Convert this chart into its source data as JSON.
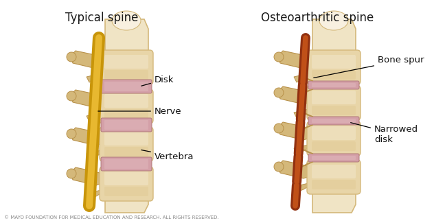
{
  "title_left": "Typical spine",
  "title_right": "Osteoarthritic spine",
  "bg_color": "#ffffff",
  "copyright": "© MAYO FOUNDATION FOR MEDICAL EDUCATION AND RESEARCH. ALL RIGHTS RESERVED.",
  "bone_tan": "#d4b87a",
  "bone_light": "#e8d5a8",
  "bone_lighter": "#f0e4c5",
  "bone_dark": "#b8914a",
  "bone_mid": "#c8a455",
  "disk_pink": "#d4a0a8",
  "disk_edge": "#b07878",
  "nerve_yellow": "#c8950a",
  "nerve_yellow_light": "#e8b830",
  "nerve_orange": "#c05018",
  "nerve_orange_dark": "#903010",
  "spine_col_color": "#ede0c0",
  "white_fade": "#f8f0e0",
  "text_color": "#1a1a1a",
  "copyright_color": "#888888",
  "annotation_color": "#111111"
}
